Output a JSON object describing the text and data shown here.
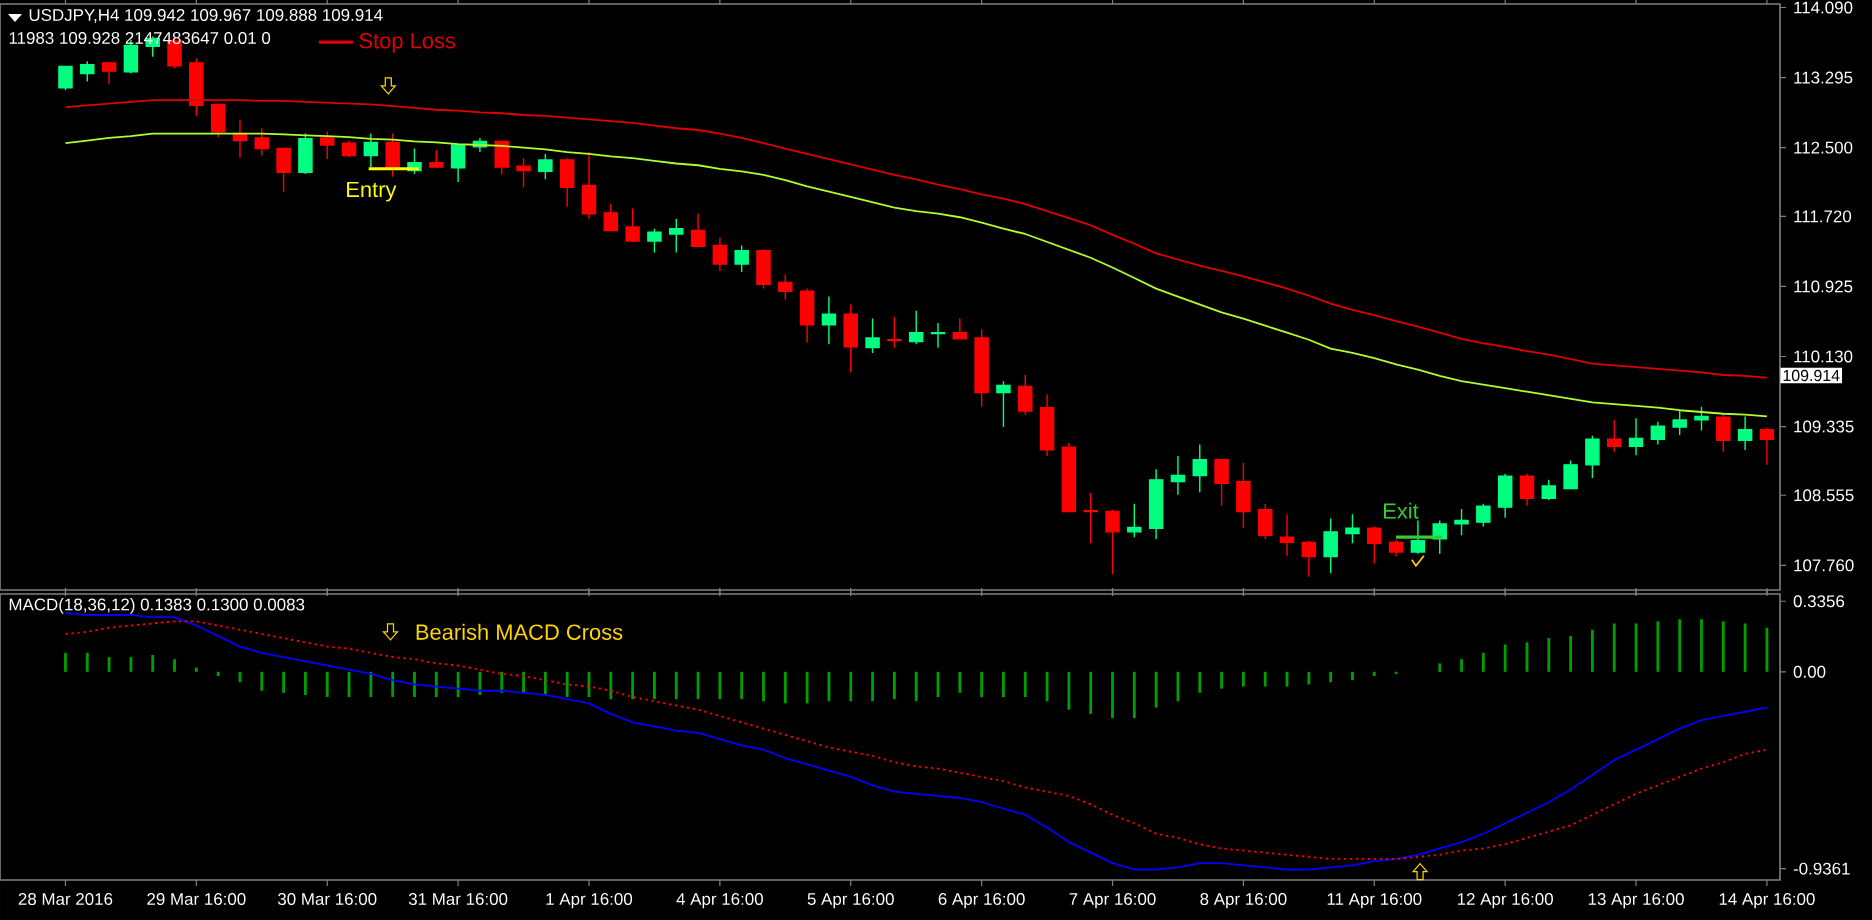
{
  "chart_data": [
    {
      "type": "candlestick",
      "title": "USDJPY,H4  109.942 109.967 109.888 109.914",
      "subtitle": "11983 109.928 2147483647 0.01 0",
      "categories": [
        "28 Mar 2016",
        null,
        null,
        null,
        null,
        null,
        "29 Mar 16:00",
        null,
        null,
        null,
        null,
        null,
        "30 Mar 16:00",
        null,
        null,
        null,
        null,
        null,
        "31 Mar 16:00",
        null,
        null,
        null,
        null,
        null,
        "1 Apr 16:00",
        null,
        null,
        null,
        null,
        null,
        "4 Apr 16:00",
        null,
        null,
        null,
        null,
        null,
        "5 Apr 16:00",
        null,
        null,
        null,
        null,
        null,
        "6 Apr 16:00",
        null,
        null,
        null,
        null,
        null,
        "7 Apr 16:00",
        null,
        null,
        null,
        null,
        null,
        "8 Apr 16:00",
        null,
        null,
        null,
        null,
        null,
        "11 Apr 16:00",
        null,
        null,
        null,
        null,
        null,
        "12 Apr 16:00",
        null,
        null,
        null,
        null,
        null,
        "13 Apr 16:00",
        null,
        null,
        null,
        null,
        null,
        "14 Apr 16:00"
      ],
      "ohlc": [
        [
          113.18,
          113.43,
          113.15,
          113.42
        ],
        [
          113.34,
          113.48,
          113.25,
          113.44
        ],
        [
          113.46,
          113.46,
          113.22,
          113.37
        ],
        [
          113.36,
          113.72,
          113.34,
          113.66
        ],
        [
          113.65,
          113.76,
          113.53,
          113.74
        ],
        [
          113.71,
          113.76,
          113.4,
          113.43
        ],
        [
          113.46,
          113.51,
          112.86,
          112.98
        ],
        [
          112.99,
          113.0,
          112.62,
          112.68
        ],
        [
          112.66,
          112.81,
          112.39,
          112.58
        ],
        [
          112.61,
          112.72,
          112.41,
          112.49
        ],
        [
          112.49,
          112.49,
          112.0,
          112.22
        ],
        [
          112.22,
          112.66,
          112.2,
          112.6
        ],
        [
          112.61,
          112.68,
          112.37,
          112.53
        ],
        [
          112.55,
          112.58,
          112.39,
          112.41
        ],
        [
          112.41,
          112.66,
          112.28,
          112.56
        ],
        [
          112.56,
          112.66,
          112.17,
          112.26
        ],
        [
          112.24,
          112.49,
          112.2,
          112.33
        ],
        [
          112.33,
          112.47,
          112.27,
          112.28
        ],
        [
          112.27,
          112.53,
          112.11,
          112.53
        ],
        [
          112.51,
          112.61,
          112.45,
          112.57
        ],
        [
          112.57,
          112.58,
          112.2,
          112.28
        ],
        [
          112.29,
          112.38,
          112.05,
          112.24
        ],
        [
          112.23,
          112.43,
          112.14,
          112.36
        ],
        [
          112.36,
          112.38,
          111.83,
          112.05
        ],
        [
          112.07,
          112.45,
          111.69,
          111.75
        ],
        [
          111.76,
          111.86,
          111.56,
          111.56
        ],
        [
          111.6,
          111.81,
          111.43,
          111.44
        ],
        [
          111.44,
          111.58,
          111.31,
          111.54
        ],
        [
          111.52,
          111.69,
          111.31,
          111.58
        ],
        [
          111.56,
          111.75,
          111.37,
          111.38
        ],
        [
          111.39,
          111.48,
          111.1,
          111.18
        ],
        [
          111.18,
          111.39,
          111.09,
          111.33
        ],
        [
          111.33,
          111.35,
          110.9,
          110.95
        ],
        [
          110.97,
          111.06,
          110.78,
          110.87
        ],
        [
          110.87,
          110.9,
          110.29,
          110.49
        ],
        [
          110.49,
          110.81,
          110.27,
          110.61
        ],
        [
          110.61,
          110.72,
          109.95,
          110.24
        ],
        [
          110.23,
          110.56,
          110.17,
          110.34
        ],
        [
          110.32,
          110.58,
          110.23,
          110.31
        ],
        [
          110.3,
          110.65,
          110.27,
          110.4
        ],
        [
          110.39,
          110.51,
          110.23,
          110.4
        ],
        [
          110.4,
          110.56,
          110.33,
          110.33
        ],
        [
          110.34,
          110.44,
          109.56,
          109.72
        ],
        [
          109.72,
          109.85,
          109.33,
          109.8
        ],
        [
          109.79,
          109.92,
          109.47,
          109.51
        ],
        [
          109.55,
          109.7,
          109.0,
          109.07
        ],
        [
          109.1,
          109.15,
          108.37,
          108.37
        ],
        [
          108.38,
          108.58,
          108.01,
          108.37
        ],
        [
          108.37,
          108.39,
          107.66,
          108.14
        ],
        [
          108.14,
          108.46,
          108.08,
          108.19
        ],
        [
          108.18,
          108.85,
          108.06,
          108.73
        ],
        [
          108.71,
          109.0,
          108.56,
          108.78
        ],
        [
          108.78,
          109.13,
          108.59,
          108.96
        ],
        [
          108.96,
          108.97,
          108.44,
          108.69
        ],
        [
          108.71,
          108.92,
          108.18,
          108.37
        ],
        [
          108.39,
          108.46,
          108.06,
          108.1
        ],
        [
          108.08,
          108.34,
          107.87,
          108.02
        ],
        [
          108.02,
          108.04,
          107.63,
          107.86
        ],
        [
          107.86,
          108.29,
          107.67,
          108.14
        ],
        [
          108.12,
          108.34,
          108.01,
          108.18
        ],
        [
          108.18,
          108.2,
          107.78,
          108.01
        ],
        [
          108.02,
          108.05,
          107.86,
          107.91
        ],
        [
          107.91,
          108.27,
          107.89,
          108.04
        ],
        [
          108.06,
          108.27,
          107.89,
          108.23
        ],
        [
          108.23,
          108.4,
          108.1,
          108.27
        ],
        [
          108.25,
          108.46,
          108.2,
          108.43
        ],
        [
          108.42,
          108.8,
          108.3,
          108.77
        ],
        [
          108.77,
          108.8,
          108.44,
          108.52
        ],
        [
          108.52,
          108.73,
          108.5,
          108.66
        ],
        [
          108.63,
          108.95,
          108.62,
          108.9
        ],
        [
          108.9,
          109.23,
          108.75,
          109.19
        ],
        [
          109.19,
          109.41,
          109.05,
          109.11
        ],
        [
          109.11,
          109.43,
          109.01,
          109.2
        ],
        [
          109.19,
          109.39,
          109.13,
          109.34
        ],
        [
          109.33,
          109.51,
          109.24,
          109.41
        ],
        [
          109.41,
          109.56,
          109.29,
          109.45
        ],
        [
          109.44,
          109.49,
          109.05,
          109.18
        ],
        [
          109.18,
          109.45,
          109.07,
          109.3
        ],
        [
          109.3,
          109.32,
          108.9,
          109.19
        ]
      ],
      "colors": [
        "#00ff80",
        "#00ff80",
        "#ff0000",
        "#00ff80",
        "#00ff80",
        "#ff0000",
        "#ff0000",
        "#ff0000",
        "#ff0000",
        "#ff0000",
        "#ff0000",
        "#00ff80",
        "#ff0000",
        "#ff0000",
        "#00ff80",
        "#ff0000",
        "#00ff80",
        "#ff0000",
        "#00ff80",
        "#00ff80",
        "#ff0000",
        "#ff0000",
        "#00ff80",
        "#ff0000",
        "#ff0000",
        "#ff0000",
        "#ff0000",
        "#00ff80",
        "#00ff80",
        "#ff0000",
        "#ff0000",
        "#00ff80",
        "#ff0000",
        "#ff0000",
        "#ff0000",
        "#00ff80",
        "#ff0000",
        "#00ff80",
        "#ff0000",
        "#00ff80",
        "#00ff80",
        "#ff0000",
        "#ff0000",
        "#00ff80",
        "#ff0000",
        "#ff0000",
        "#ff0000",
        "#ff0000",
        "#ff0000",
        "#00ff80",
        "#00ff80",
        "#00ff80",
        "#00ff80",
        "#ff0000",
        "#ff0000",
        "#ff0000",
        "#ff0000",
        "#ff0000",
        "#00ff80",
        "#00ff80",
        "#ff0000",
        "#ff0000",
        "#00ff80",
        "#00ff80",
        "#00ff80",
        "#00ff80",
        "#00ff80",
        "#ff0000",
        "#00ff80",
        "#00ff80",
        "#00ff80",
        "#ff0000",
        "#00ff80",
        "#00ff80",
        "#00ff80",
        "#00ff80",
        "#ff0000",
        "#00ff80",
        "#ff0000"
      ],
      "series": [
        {
          "type": "line",
          "name": "Stop Loss",
          "color": "#e00000",
          "values": [
            112.96,
            112.98,
            113.0,
            113.02,
            113.04,
            113.04,
            113.04,
            113.04,
            113.04,
            113.03,
            113.03,
            113.02,
            113.01,
            113.0,
            112.99,
            112.97,
            112.95,
            112.93,
            112.92,
            112.9,
            112.89,
            112.87,
            112.86,
            112.84,
            112.82,
            112.8,
            112.78,
            112.75,
            112.72,
            112.7,
            112.66,
            112.61,
            112.55,
            112.49,
            112.43,
            112.37,
            112.31,
            112.25,
            112.19,
            112.14,
            112.08,
            112.03,
            111.97,
            111.92,
            111.86,
            111.78,
            111.7,
            111.62,
            111.51,
            111.41,
            111.3,
            111.23,
            111.16,
            111.1,
            111.04,
            110.97,
            110.9,
            110.82,
            110.73,
            110.66,
            110.6,
            110.53,
            110.47,
            110.4,
            110.33,
            110.28,
            110.24,
            110.19,
            110.15,
            110.1,
            110.05,
            110.03,
            110.01,
            109.99,
            109.97,
            109.95,
            109.92,
            109.91,
            109.89
          ]
        },
        {
          "type": "line",
          "color": "#adff2f",
          "values": [
            112.55,
            112.58,
            112.61,
            112.63,
            112.66,
            112.66,
            112.66,
            112.66,
            112.66,
            112.66,
            112.65,
            112.64,
            112.63,
            112.62,
            112.6,
            112.59,
            112.57,
            112.56,
            112.54,
            112.53,
            112.52,
            112.5,
            112.48,
            112.45,
            112.43,
            112.4,
            112.38,
            112.35,
            112.32,
            112.3,
            112.26,
            112.23,
            112.19,
            112.13,
            112.06,
            112.0,
            111.94,
            111.88,
            111.82,
            111.78,
            111.75,
            111.71,
            111.65,
            111.58,
            111.52,
            111.43,
            111.34,
            111.25,
            111.14,
            111.02,
            110.9,
            110.81,
            110.72,
            110.63,
            110.56,
            110.48,
            110.4,
            110.32,
            110.22,
            110.17,
            110.11,
            110.04,
            109.98,
            109.91,
            109.85,
            109.81,
            109.77,
            109.73,
            109.69,
            109.65,
            109.61,
            109.59,
            109.57,
            109.55,
            109.52,
            109.5,
            109.48,
            109.47,
            109.45
          ]
        }
      ],
      "ylim": [
        107.48,
        114.13
      ],
      "yticks": [
        {
          "value": 114.09,
          "label": "114.090"
        },
        113.295,
        {
          "value": 112.5,
          "label": "112.500"
        },
        {
          "value": 111.72,
          "label": "111.720"
        },
        110.925,
        {
          "value": 110.13,
          "label": "110.130"
        },
        109.335,
        108.555,
        {
          "value": 107.76,
          "label": "107.760"
        }
      ],
      "tick_labels": "y",
      "legend": "top",
      "annotations": [
        "Entry",
        "Exit",
        {
          "text": "109.914",
          "x": "14 Apr 16:00",
          "y": 109.914
        }
      ]
    },
    {
      "type": "bar",
      "title": "MACD(18,36,12) 0.1383 0.1300 0.0083",
      "categories": [
        "28 Mar 2016",
        null,
        null,
        null,
        null,
        null,
        "29 Mar 16:00",
        null,
        null,
        null,
        null,
        null,
        "30 Mar 16:00",
        null,
        null,
        null,
        null,
        null,
        "31 Mar 16:00",
        null,
        null,
        null,
        null,
        null,
        "1 Apr 16:00",
        null,
        null,
        null,
        null,
        null,
        "4 Apr 16:00",
        null,
        null,
        null,
        null,
        null,
        "5 Apr 16:00",
        null,
        null,
        null,
        null,
        null,
        "6 Apr 16:00",
        null,
        null,
        null,
        null,
        null,
        "7 Apr 16:00",
        null,
        null,
        null,
        null,
        null,
        "8 Apr 16:00",
        null,
        null,
        null,
        null,
        null,
        "11 Apr 16:00",
        null,
        null,
        null,
        null,
        null,
        "12 Apr 16:00",
        null,
        null,
        null,
        null,
        null,
        "13 Apr 16:00",
        null,
        null,
        null,
        null,
        null,
        "14 Apr 16:00"
      ],
      "series": [
        {
          "type": "bar",
          "color": "#00a000",
          "values": [
            0.09,
            0.09,
            0.07,
            0.07,
            0.08,
            0.06,
            0.02,
            -0.02,
            -0.05,
            -0.09,
            -0.1,
            -0.11,
            -0.12,
            -0.12,
            -0.12,
            -0.12,
            -0.12,
            -0.12,
            -0.12,
            -0.11,
            -0.1,
            -0.1,
            -0.11,
            -0.12,
            -0.12,
            -0.13,
            -0.13,
            -0.13,
            -0.13,
            -0.13,
            -0.13,
            -0.13,
            -0.14,
            -0.15,
            -0.15,
            -0.14,
            -0.14,
            -0.14,
            -0.13,
            -0.14,
            -0.12,
            -0.1,
            -0.12,
            -0.12,
            -0.12,
            -0.14,
            -0.18,
            -0.2,
            -0.22,
            -0.22,
            -0.17,
            -0.14,
            -0.1,
            -0.08,
            -0.07,
            -0.07,
            -0.07,
            -0.06,
            -0.05,
            -0.04,
            -0.02,
            -0.01,
            0,
            0.04,
            0.06,
            0.09,
            0.13,
            0.14,
            0.16,
            0.17,
            0.2,
            0.23,
            0.23,
            0.24,
            0.25,
            0.25,
            0.24,
            0.23,
            0.21
          ]
        },
        {
          "type": "line",
          "color": "#0000ff",
          "values": [
            0.28,
            0.27,
            0.27,
            0.27,
            0.26,
            0.26,
            0.22,
            0.17,
            0.12,
            0.09,
            0.07,
            0.05,
            0.03,
            0.01,
            -0.01,
            -0.04,
            -0.06,
            -0.07,
            -0.08,
            -0.09,
            -0.09,
            -0.1,
            -0.11,
            -0.13,
            -0.15,
            -0.2,
            -0.24,
            -0.26,
            -0.28,
            -0.29,
            -0.32,
            -0.35,
            -0.37,
            -0.41,
            -0.44,
            -0.47,
            -0.5,
            -0.54,
            -0.57,
            -0.58,
            -0.59,
            -0.6,
            -0.62,
            -0.65,
            -0.68,
            -0.74,
            -0.81,
            -0.86,
            -0.91,
            -0.94,
            -0.94,
            -0.93,
            -0.91,
            -0.91,
            -0.92,
            -0.93,
            -0.94,
            -0.94,
            -0.93,
            -0.92,
            -0.9,
            -0.89,
            -0.87,
            -0.84,
            -0.81,
            -0.77,
            -0.72,
            -0.67,
            -0.62,
            -0.56,
            -0.49,
            -0.42,
            -0.37,
            -0.32,
            -0.27,
            -0.23,
            -0.21,
            -0.19,
            -0.17
          ]
        },
        {
          "type": "line",
          "color": "#ff0000",
          "line_style": "dotted",
          "values": [
            0.18,
            0.19,
            0.21,
            0.22,
            0.23,
            0.24,
            0.24,
            0.22,
            0.2,
            0.18,
            0.16,
            0.14,
            0.12,
            0.11,
            0.09,
            0.07,
            0.06,
            0.04,
            0.03,
            0.01,
            -0.01,
            -0.02,
            -0.04,
            -0.06,
            -0.07,
            -0.09,
            -0.12,
            -0.14,
            -0.16,
            -0.18,
            -0.21,
            -0.24,
            -0.27,
            -0.3,
            -0.33,
            -0.36,
            -0.38,
            -0.4,
            -0.43,
            -0.45,
            -0.46,
            -0.48,
            -0.5,
            -0.52,
            -0.55,
            -0.57,
            -0.59,
            -0.63,
            -0.68,
            -0.72,
            -0.77,
            -0.79,
            -0.82,
            -0.84,
            -0.85,
            -0.86,
            -0.87,
            -0.88,
            -0.89,
            -0.89,
            -0.89,
            -0.89,
            -0.88,
            -0.87,
            -0.85,
            -0.84,
            -0.82,
            -0.79,
            -0.76,
            -0.73,
            -0.68,
            -0.63,
            -0.58,
            -0.54,
            -0.5,
            -0.46,
            -0.43,
            -0.39,
            -0.37
          ]
        }
      ],
      "ylim": [
        -0.99,
        0.37
      ],
      "yticks": [
        0.3356,
        {
          "value": 0,
          "label": "0.00"
        },
        -0.9361
      ],
      "annotations": [
        "Bearish MACD Cross"
      ]
    }
  ]
}
